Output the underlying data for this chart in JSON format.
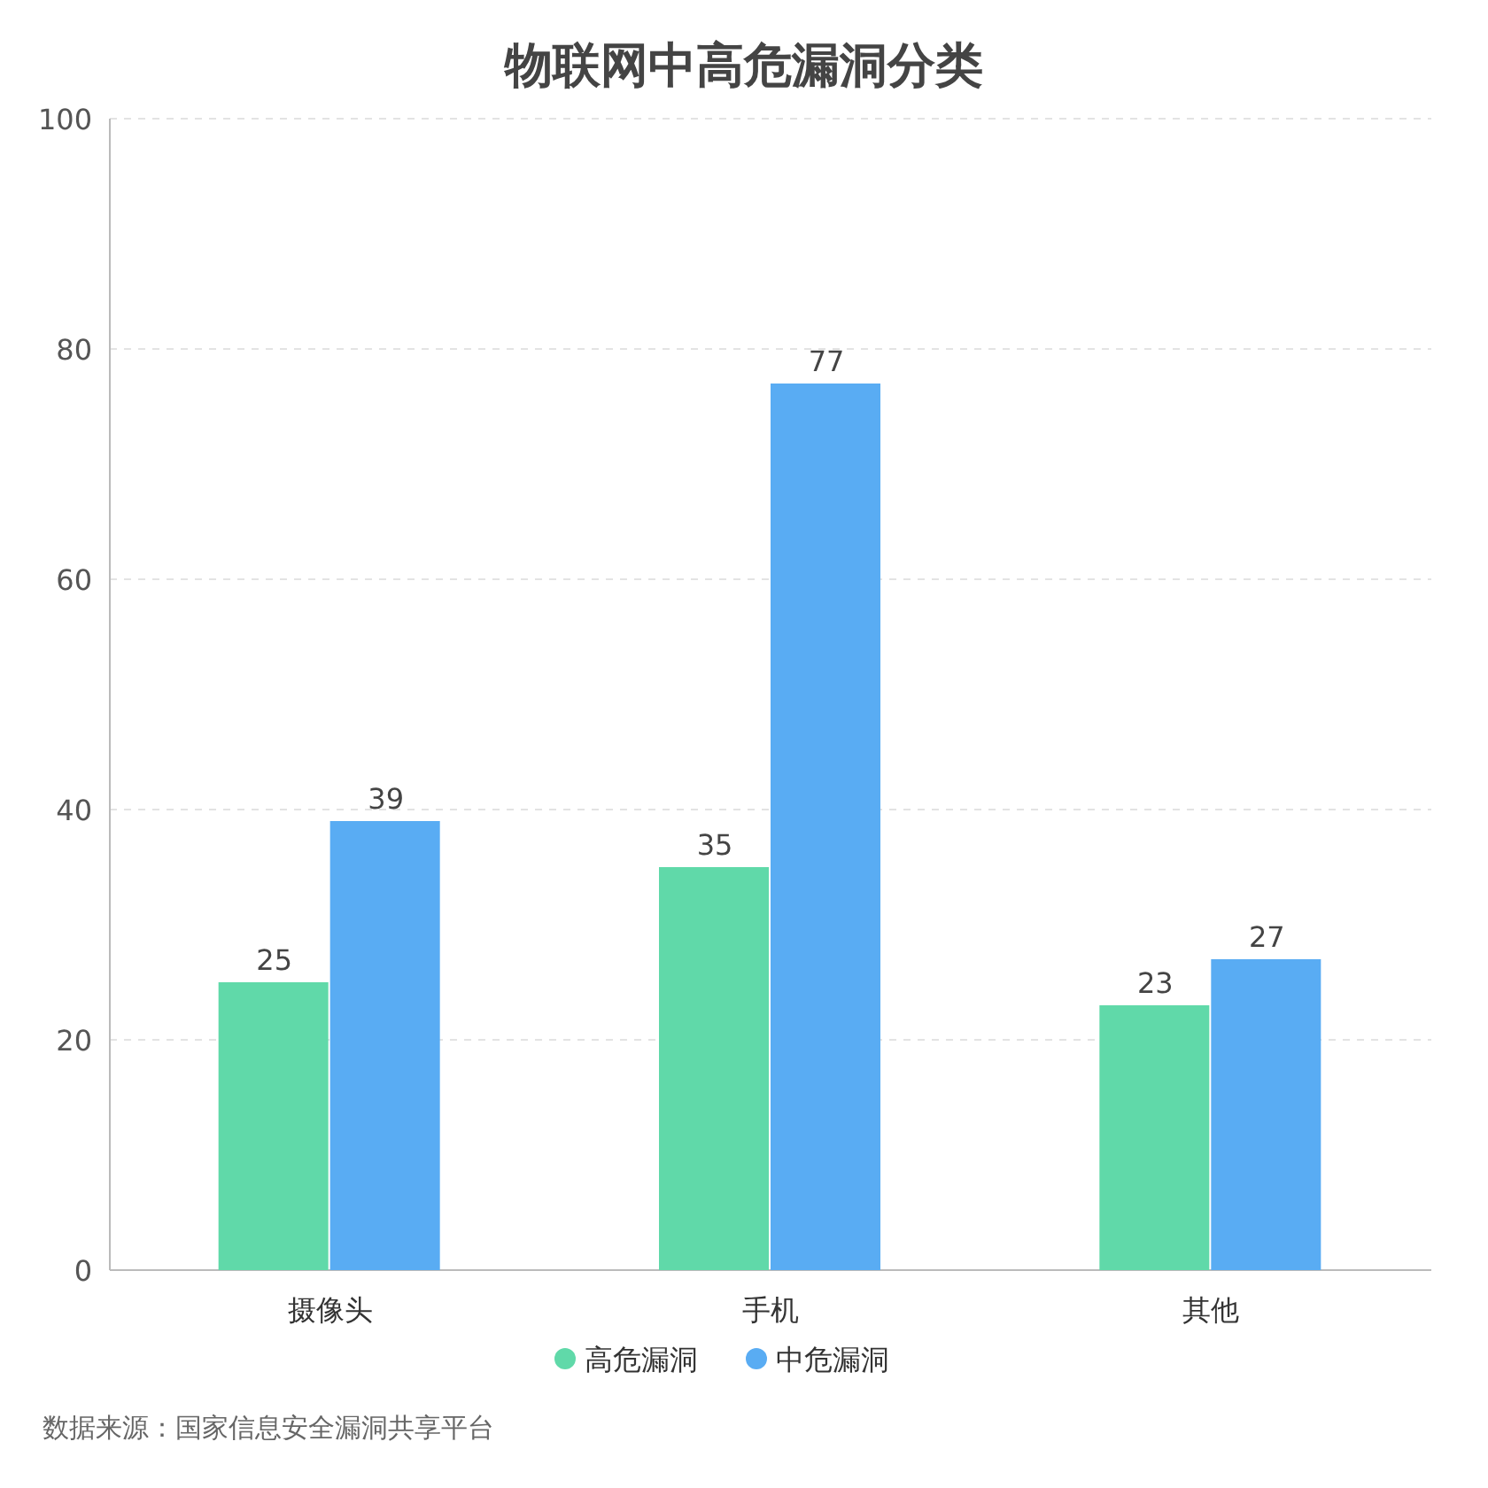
{
  "chart_data": {
    "type": "bar",
    "title": "物联网中高危漏洞分类",
    "categories": [
      "摄像头",
      "手机",
      "其他"
    ],
    "series": [
      {
        "name": "高危漏洞",
        "color": "#60d9a9",
        "values": [
          25,
          35,
          23
        ]
      },
      {
        "name": "中危漏洞",
        "color": "#59acf3",
        "values": [
          39,
          77,
          27
        ]
      }
    ],
    "ylim": [
      0,
      100
    ],
    "yticks": [
      0,
      20,
      40,
      60,
      80,
      100
    ],
    "grid": "y",
    "legend": "bottom",
    "data_labels": true,
    "annotations": [
      "数据来源：国家信息安全漏洞共享平台"
    ]
  }
}
